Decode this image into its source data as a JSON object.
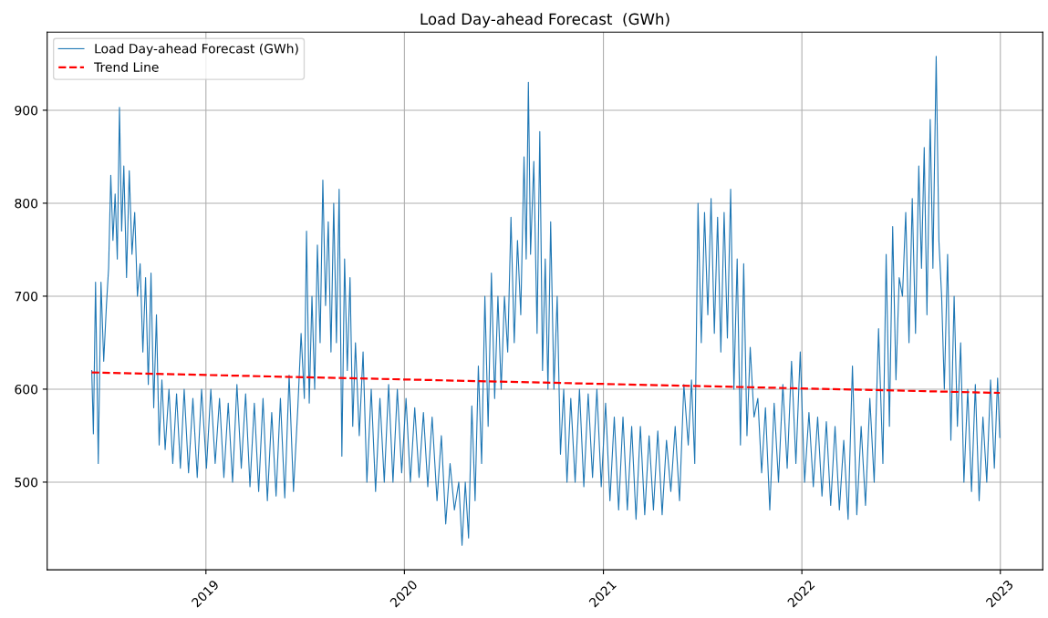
{
  "chart_data": {
    "type": "line",
    "title": "Load Day-ahead Forecast  (GWh)",
    "legend": "top left",
    "grid": true,
    "xlim": [
      "2018-03-15",
      "2023-03-20"
    ],
    "ylim": [
      405.7,
      984
    ],
    "xticks": [
      {
        "value": "2019-01-01",
        "label": "2019"
      },
      {
        "value": "2020-01-01",
        "label": "2020"
      },
      {
        "value": "2021-01-01",
        "label": "2021"
      },
      {
        "value": "2022-01-01",
        "label": "2022"
      },
      {
        "value": "2023-01-01",
        "label": "2023"
      }
    ],
    "yticks": [
      500,
      600,
      700,
      800,
      900
    ],
    "series": [
      {
        "name": "Load Day-ahead Forecast (GWh)",
        "color": "#1f77b4",
        "line_style": "solid",
        "x": [
          "2018-06-05",
          "2018-06-08",
          "2018-06-12",
          "2018-06-17",
          "2018-06-22",
          "2018-06-27",
          "2018-07-02",
          "2018-07-06",
          "2018-07-10",
          "2018-07-14",
          "2018-07-18",
          "2018-07-22",
          "2018-07-26",
          "2018-07-30",
          "2018-08-03",
          "2018-08-08",
          "2018-08-13",
          "2018-08-18",
          "2018-08-23",
          "2018-08-28",
          "2018-09-02",
          "2018-09-07",
          "2018-09-12",
          "2018-09-17",
          "2018-09-22",
          "2018-09-27",
          "2018-10-02",
          "2018-10-07",
          "2018-10-12",
          "2018-10-18",
          "2018-10-25",
          "2018-11-01",
          "2018-11-08",
          "2018-11-15",
          "2018-11-22",
          "2018-11-30",
          "2018-12-08",
          "2018-12-16",
          "2018-12-24",
          "2019-01-02",
          "2019-01-10",
          "2019-01-18",
          "2019-01-26",
          "2019-02-03",
          "2019-02-11",
          "2019-02-19",
          "2019-02-27",
          "2019-03-07",
          "2019-03-15",
          "2019-03-23",
          "2019-03-31",
          "2019-04-08",
          "2019-04-16",
          "2019-04-24",
          "2019-05-02",
          "2019-05-10",
          "2019-05-18",
          "2019-05-26",
          "2019-06-03",
          "2019-06-11",
          "2019-06-19",
          "2019-06-25",
          "2019-07-01",
          "2019-07-05",
          "2019-07-10",
          "2019-07-15",
          "2019-07-20",
          "2019-07-25",
          "2019-07-30",
          "2019-08-04",
          "2019-08-09",
          "2019-08-14",
          "2019-08-19",
          "2019-08-24",
          "2019-08-29",
          "2019-09-03",
          "2019-09-08",
          "2019-09-13",
          "2019-09-18",
          "2019-09-23",
          "2019-09-28",
          "2019-10-03",
          "2019-10-10",
          "2019-10-17",
          "2019-10-24",
          "2019-11-01",
          "2019-11-09",
          "2019-11-17",
          "2019-11-25",
          "2019-12-03",
          "2019-12-11",
          "2019-12-19",
          "2019-12-27",
          "2020-01-04",
          "2020-01-12",
          "2020-01-20",
          "2020-01-28",
          "2020-02-05",
          "2020-02-13",
          "2020-02-21",
          "2020-03-01",
          "2020-03-09",
          "2020-03-17",
          "2020-03-25",
          "2020-04-02",
          "2020-04-10",
          "2020-04-16",
          "2020-04-22",
          "2020-04-28",
          "2020-05-04",
          "2020-05-10",
          "2020-05-16",
          "2020-05-22",
          "2020-05-28",
          "2020-06-03",
          "2020-06-09",
          "2020-06-15",
          "2020-06-21",
          "2020-06-27",
          "2020-07-03",
          "2020-07-09",
          "2020-07-15",
          "2020-07-21",
          "2020-07-27",
          "2020-08-02",
          "2020-08-08",
          "2020-08-12",
          "2020-08-16",
          "2020-08-20",
          "2020-08-26",
          "2020-09-01",
          "2020-09-06",
          "2020-09-11",
          "2020-09-16",
          "2020-09-21",
          "2020-09-26",
          "2020-10-02",
          "2020-10-08",
          "2020-10-14",
          "2020-10-20",
          "2020-10-26",
          "2020-11-02",
          "2020-11-10",
          "2020-11-18",
          "2020-11-26",
          "2020-12-04",
          "2020-12-12",
          "2020-12-20",
          "2020-12-28",
          "2021-01-05",
          "2021-01-13",
          "2021-01-21",
          "2021-01-29",
          "2021-02-06",
          "2021-02-14",
          "2021-02-22",
          "2021-03-02",
          "2021-03-10",
          "2021-03-18",
          "2021-03-26",
          "2021-04-03",
          "2021-04-11",
          "2021-04-19",
          "2021-04-27",
          "2021-05-05",
          "2021-05-13",
          "2021-05-21",
          "2021-05-29",
          "2021-06-06",
          "2021-06-12",
          "2021-06-18",
          "2021-06-24",
          "2021-06-30",
          "2021-07-06",
          "2021-07-12",
          "2021-07-18",
          "2021-07-24",
          "2021-07-30",
          "2021-08-05",
          "2021-08-11",
          "2021-08-17",
          "2021-08-23",
          "2021-08-29",
          "2021-09-04",
          "2021-09-10",
          "2021-09-16",
          "2021-09-22",
          "2021-09-28",
          "2021-10-05",
          "2021-10-12",
          "2021-10-19",
          "2021-10-26",
          "2021-11-03",
          "2021-11-11",
          "2021-11-19",
          "2021-11-27",
          "2021-12-05",
          "2021-12-13",
          "2021-12-21",
          "2021-12-29",
          "2022-01-06",
          "2022-01-14",
          "2022-01-22",
          "2022-01-30",
          "2022-02-07",
          "2022-02-15",
          "2022-02-23",
          "2022-03-03",
          "2022-03-11",
          "2022-03-19",
          "2022-03-27",
          "2022-04-04",
          "2022-04-12",
          "2022-04-20",
          "2022-04-28",
          "2022-05-06",
          "2022-05-14",
          "2022-05-22",
          "2022-05-30",
          "2022-06-05",
          "2022-06-11",
          "2022-06-17",
          "2022-06-23",
          "2022-06-29",
          "2022-07-05",
          "2022-07-11",
          "2022-07-17",
          "2022-07-23",
          "2022-07-29",
          "2022-08-04",
          "2022-08-09",
          "2022-08-14",
          "2022-08-19",
          "2022-08-25",
          "2022-08-30",
          "2022-09-05",
          "2022-09-10",
          "2022-09-15",
          "2022-09-20",
          "2022-09-26",
          "2022-10-02",
          "2022-10-08",
          "2022-10-14",
          "2022-10-20",
          "2022-10-26",
          "2022-11-02",
          "2022-11-09",
          "2022-11-16",
          "2022-11-23",
          "2022-11-30",
          "2022-12-07",
          "2022-12-14",
          "2022-12-21",
          "2022-12-27",
          "2022-12-31"
        ],
        "values": [
          620,
          552,
          715,
          520,
          715,
          630,
          690,
          730,
          830,
          760,
          810,
          740,
          903,
          770,
          840,
          720,
          835,
          745,
          790,
          700,
          735,
          640,
          720,
          605,
          725,
          580,
          680,
          540,
          610,
          535,
          600,
          520,
          595,
          515,
          600,
          510,
          590,
          505,
          600,
          515,
          600,
          520,
          590,
          505,
          585,
          500,
          605,
          515,
          595,
          495,
          585,
          490,
          590,
          480,
          575,
          485,
          590,
          483,
          615,
          490,
          580,
          660,
          590,
          770,
          585,
          700,
          600,
          755,
          650,
          825,
          690,
          780,
          640,
          800,
          650,
          815,
          528,
          740,
          620,
          720,
          560,
          650,
          550,
          640,
          500,
          600,
          490,
          590,
          500,
          605,
          500,
          600,
          510,
          590,
          500,
          580,
          505,
          575,
          495,
          570,
          480,
          550,
          455,
          520,
          470,
          500,
          432,
          500,
          440,
          582,
          480,
          625,
          520,
          700,
          560,
          725,
          590,
          700,
          600,
          700,
          640,
          785,
          650,
          760,
          680,
          850,
          740,
          930,
          745,
          845,
          660,
          877,
          620,
          740,
          600,
          780,
          600,
          700,
          530,
          600,
          500,
          590,
          500,
          600,
          495,
          595,
          505,
          600,
          495,
          585,
          480,
          570,
          470,
          570,
          470,
          560,
          460,
          560,
          465,
          550,
          470,
          555,
          465,
          545,
          490,
          560,
          480,
          605,
          540,
          610,
          520,
          800,
          650,
          790,
          680,
          805,
          660,
          785,
          640,
          790,
          655,
          815,
          600,
          740,
          540,
          735,
          550,
          645,
          570,
          590,
          510,
          580,
          470,
          585,
          500,
          605,
          515,
          630,
          520,
          640,
          500,
          575,
          495,
          570,
          485,
          565,
          475,
          560,
          470,
          545,
          460,
          625,
          465,
          560,
          475,
          590,
          500,
          665,
          520,
          745,
          560,
          775,
          610,
          720,
          700,
          790,
          650,
          805,
          660,
          840,
          730,
          860,
          680,
          890,
          730,
          958,
          760,
          700,
          600,
          745,
          545,
          700,
          560,
          650,
          500,
          600,
          490,
          605,
          480,
          570,
          500,
          610,
          515,
          612,
          548
        ]
      },
      {
        "name": "Trend Line",
        "type": "line",
        "color": "#ff0000",
        "line_style": "dashed",
        "x": [
          "2018-06-05",
          "2022-12-31"
        ],
        "values": [
          618,
          596
        ]
      }
    ]
  }
}
